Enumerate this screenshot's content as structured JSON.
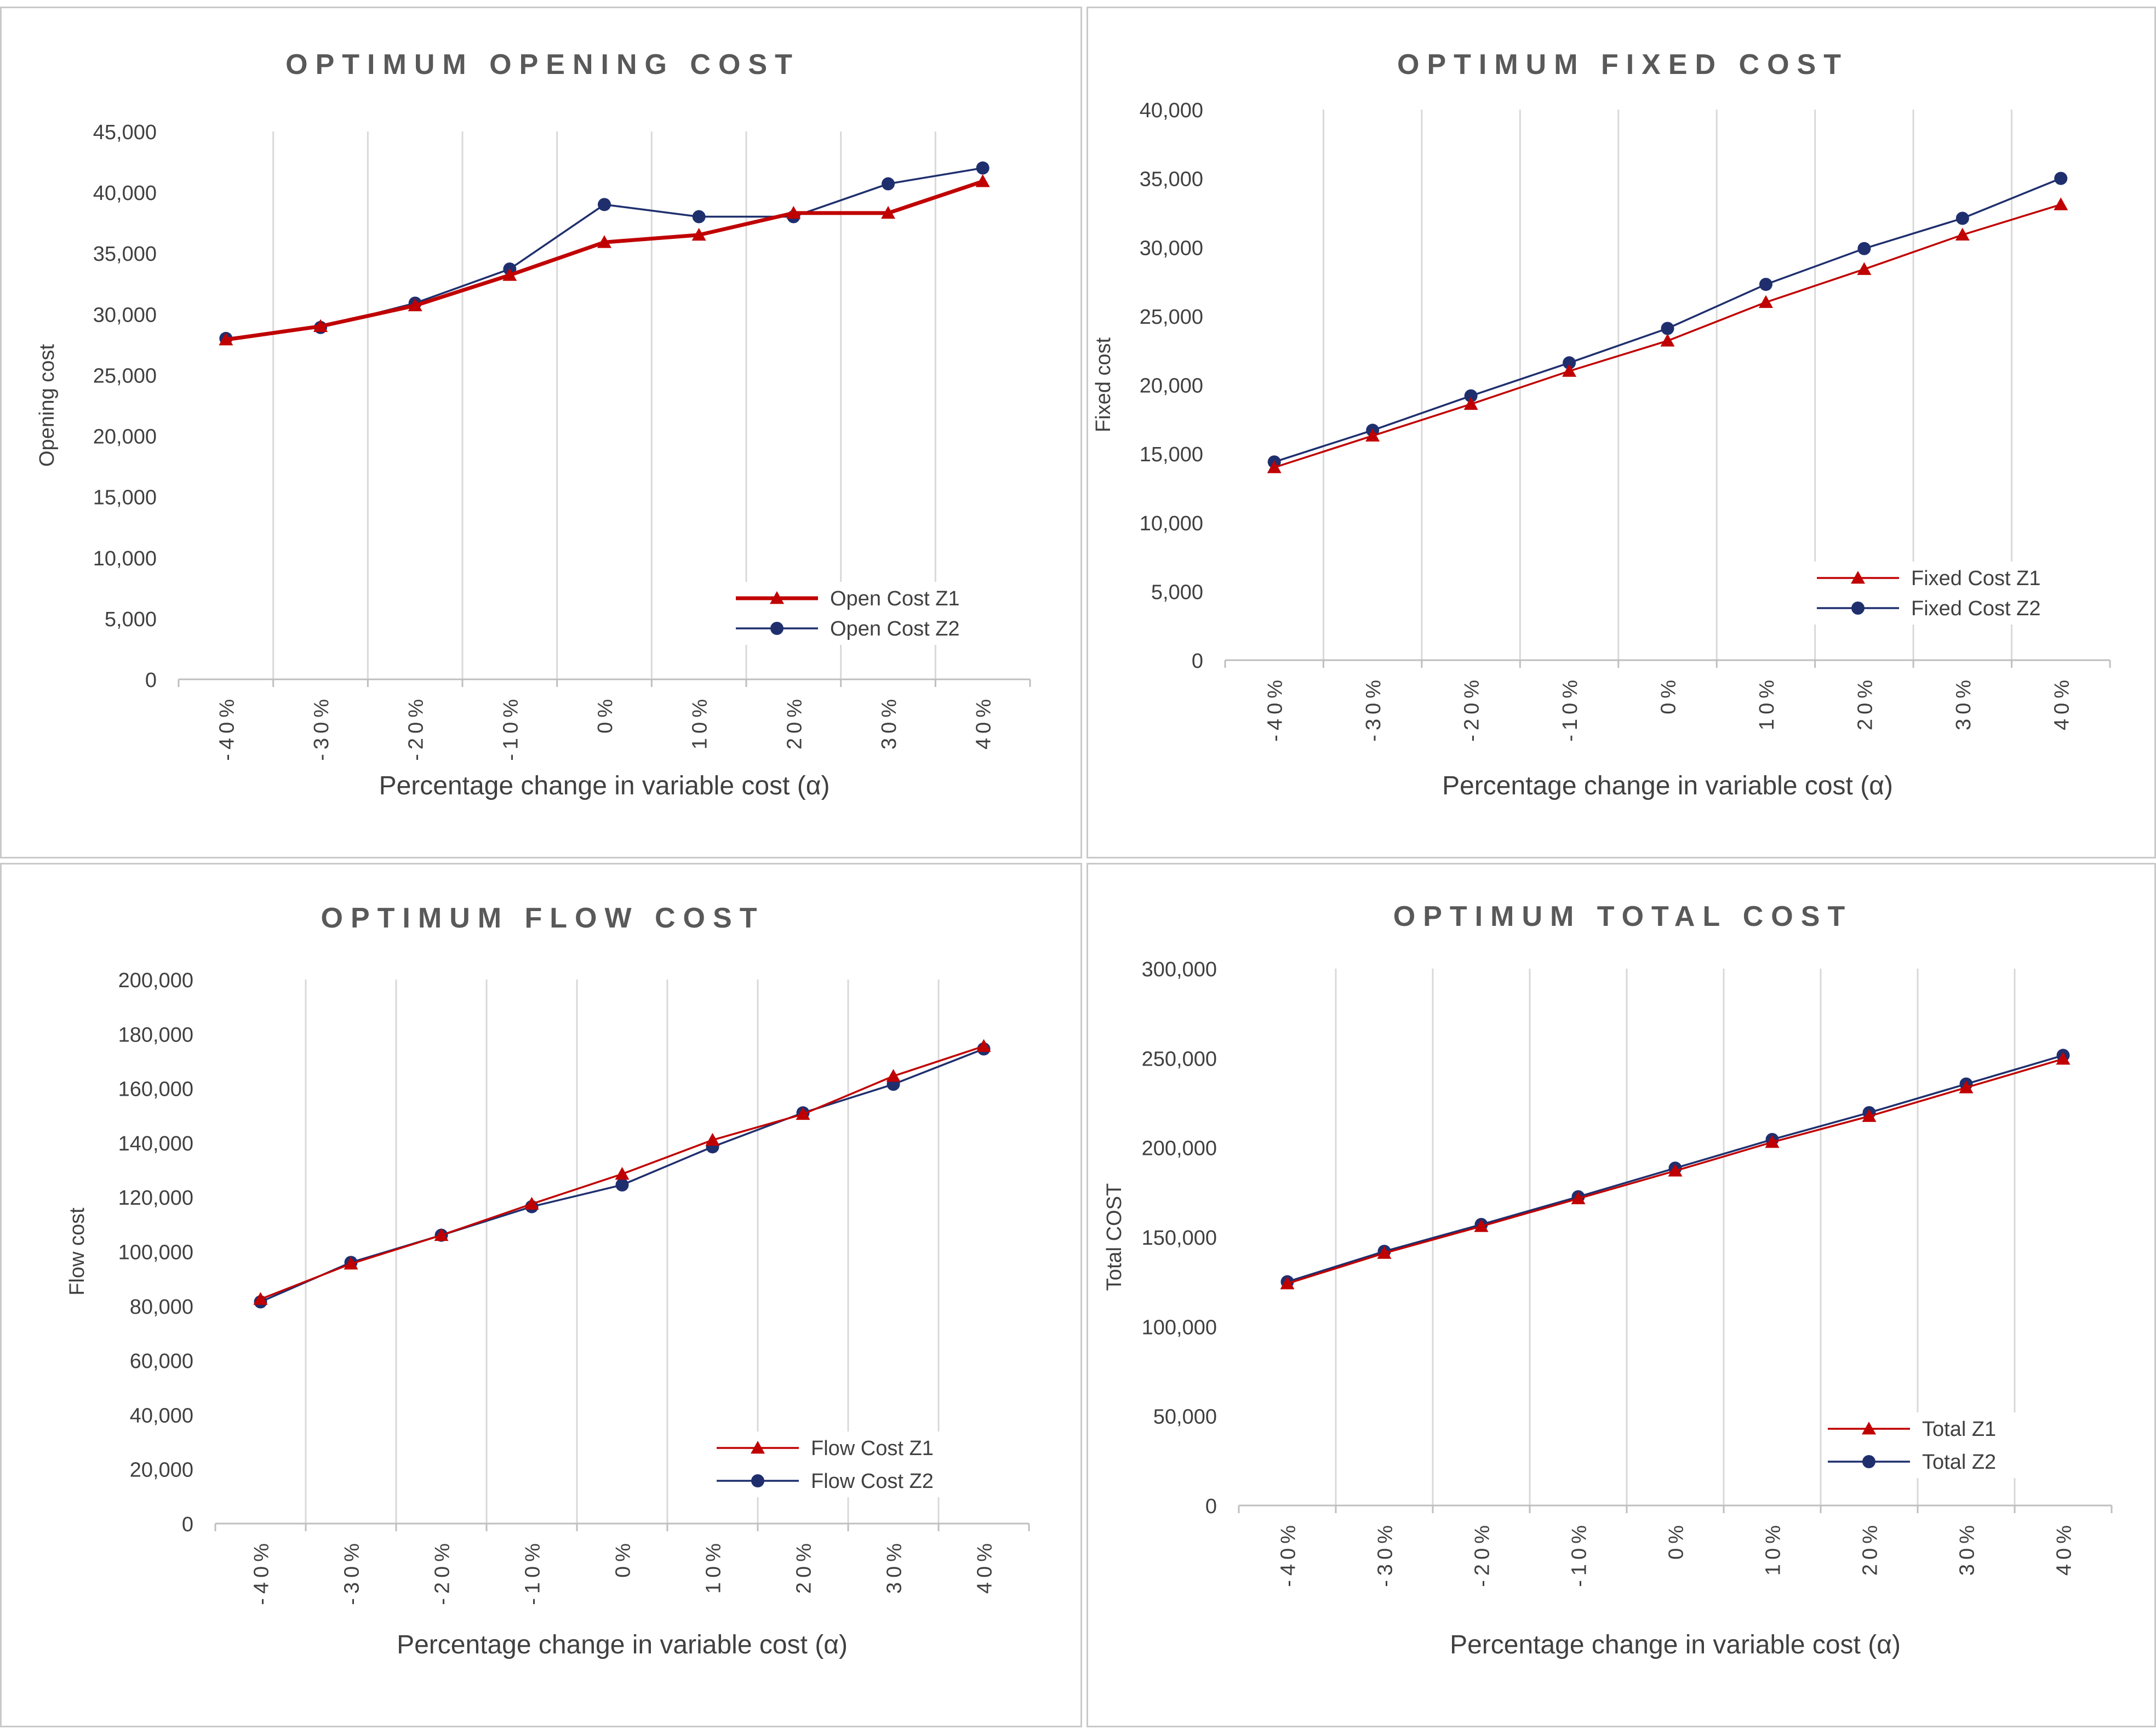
{
  "colors": {
    "series1": "#c00000",
    "series2": "#1f2f6e",
    "grid": "#d9d9d9",
    "axis": "#bfbfbf",
    "text": "#404040"
  },
  "chart_data": [
    {
      "type": "line",
      "title": "OPTIMUM OPENING COST",
      "xlabel": "Percentage change in variable cost (α)",
      "ylabel": "Opening cost",
      "categories": [
        "-40%",
        "-30%",
        "-20%",
        "-10%",
        "0%",
        "10%",
        "20%",
        "30%",
        "40%"
      ],
      "ylim": [
        0,
        45000
      ],
      "ytick_step": 5000,
      "ytick_labels": [
        "0",
        "5,000",
        "10,000",
        "15,000",
        "20,000",
        "25,000",
        "30,000",
        "35,000",
        "40,000",
        "45,000"
      ],
      "legend_position": "lower-right",
      "series": [
        {
          "name": "Open Cost Z1",
          "marker": "triangle",
          "color": "#c00000",
          "values": [
            27900,
            29000,
            30700,
            33200,
            35900,
            36500,
            38300,
            38300,
            40900
          ]
        },
        {
          "name": "Open Cost Z2",
          "marker": "circle",
          "color": "#1f2f6e",
          "values": [
            28000,
            28900,
            30900,
            33700,
            39000,
            38000,
            38000,
            40700,
            42000
          ]
        }
      ]
    },
    {
      "type": "line",
      "title": "OPTIMUM FIXED COST",
      "xlabel": "Percentage change in variable cost (α)",
      "ylabel": "Fixed cost",
      "categories": [
        "-40%",
        "-30%",
        "-20%",
        "-10%",
        "0%",
        "10%",
        "20%",
        "30%",
        "40%"
      ],
      "ylim": [
        0,
        40000
      ],
      "ytick_step": 5000,
      "ytick_labels": [
        "0",
        "5,000",
        "10,000",
        "15,000",
        "20,000",
        "25,000",
        "30,000",
        "35,000",
        "40,000"
      ],
      "legend_position": "lower-right",
      "series": [
        {
          "name": "Fixed Cost Z1",
          "marker": "triangle",
          "color": "#c00000",
          "values": [
            14000,
            16300,
            18600,
            21000,
            23200,
            26000,
            28400,
            30900,
            33100
          ]
        },
        {
          "name": "Fixed Cost Z2",
          "marker": "circle",
          "color": "#1f2f6e",
          "values": [
            14400,
            16700,
            19200,
            21600,
            24100,
            27300,
            29900,
            32100,
            35000
          ]
        }
      ]
    },
    {
      "type": "line",
      "title": "OPTIMUM FLOW COST",
      "xlabel": "Percentage change in variable cost (α)",
      "ylabel": "Flow cost",
      "categories": [
        "-40%",
        "-30%",
        "-20%",
        "-10%",
        "0%",
        "10%",
        "20%",
        "30%",
        "40%"
      ],
      "ylim": [
        0,
        200000
      ],
      "ytick_step": 20000,
      "ytick_labels": [
        "0",
        "20,000",
        "40,000",
        "60,000",
        "80,000",
        "100,000",
        "120,000",
        "140,000",
        "160,000",
        "180,000",
        "200,000"
      ],
      "legend_position": "lower-right",
      "series": [
        {
          "name": "Flow Cost Z1",
          "marker": "triangle",
          "color": "#c00000",
          "values": [
            82500,
            95500,
            106000,
            117500,
            128500,
            141000,
            150500,
            164500,
            175500
          ]
        },
        {
          "name": "Flow Cost Z2",
          "marker": "circle",
          "color": "#1f2f6e",
          "values": [
            81500,
            96000,
            106000,
            116500,
            124500,
            138500,
            151000,
            161500,
            174500
          ]
        }
      ]
    },
    {
      "type": "line",
      "title": "OPTIMUM TOTAL COST",
      "xlabel": "Percentage change in variable cost (α)",
      "ylabel": "Total COST",
      "categories": [
        "-40%",
        "-30%",
        "-20%",
        "-10%",
        "0%",
        "10%",
        "20%",
        "30%",
        "40%"
      ],
      "ylim": [
        0,
        300000
      ],
      "ytick_step": 50000,
      "ytick_labels": [
        "0",
        "50,000",
        "100,000",
        "150,000",
        "200,000",
        "250,000",
        "300,000"
      ],
      "legend_position": "lower-right",
      "series": [
        {
          "name": "Total Z1",
          "marker": "triangle",
          "color": "#c00000",
          "values": [
            124000,
            141000,
            156000,
            171500,
            187000,
            203000,
            217500,
            233500,
            249500
          ]
        },
        {
          "name": "Total Z2",
          "marker": "circle",
          "color": "#1f2f6e",
          "values": [
            125000,
            142000,
            157000,
            172500,
            188500,
            204500,
            219500,
            235500,
            251500
          ]
        }
      ]
    }
  ]
}
